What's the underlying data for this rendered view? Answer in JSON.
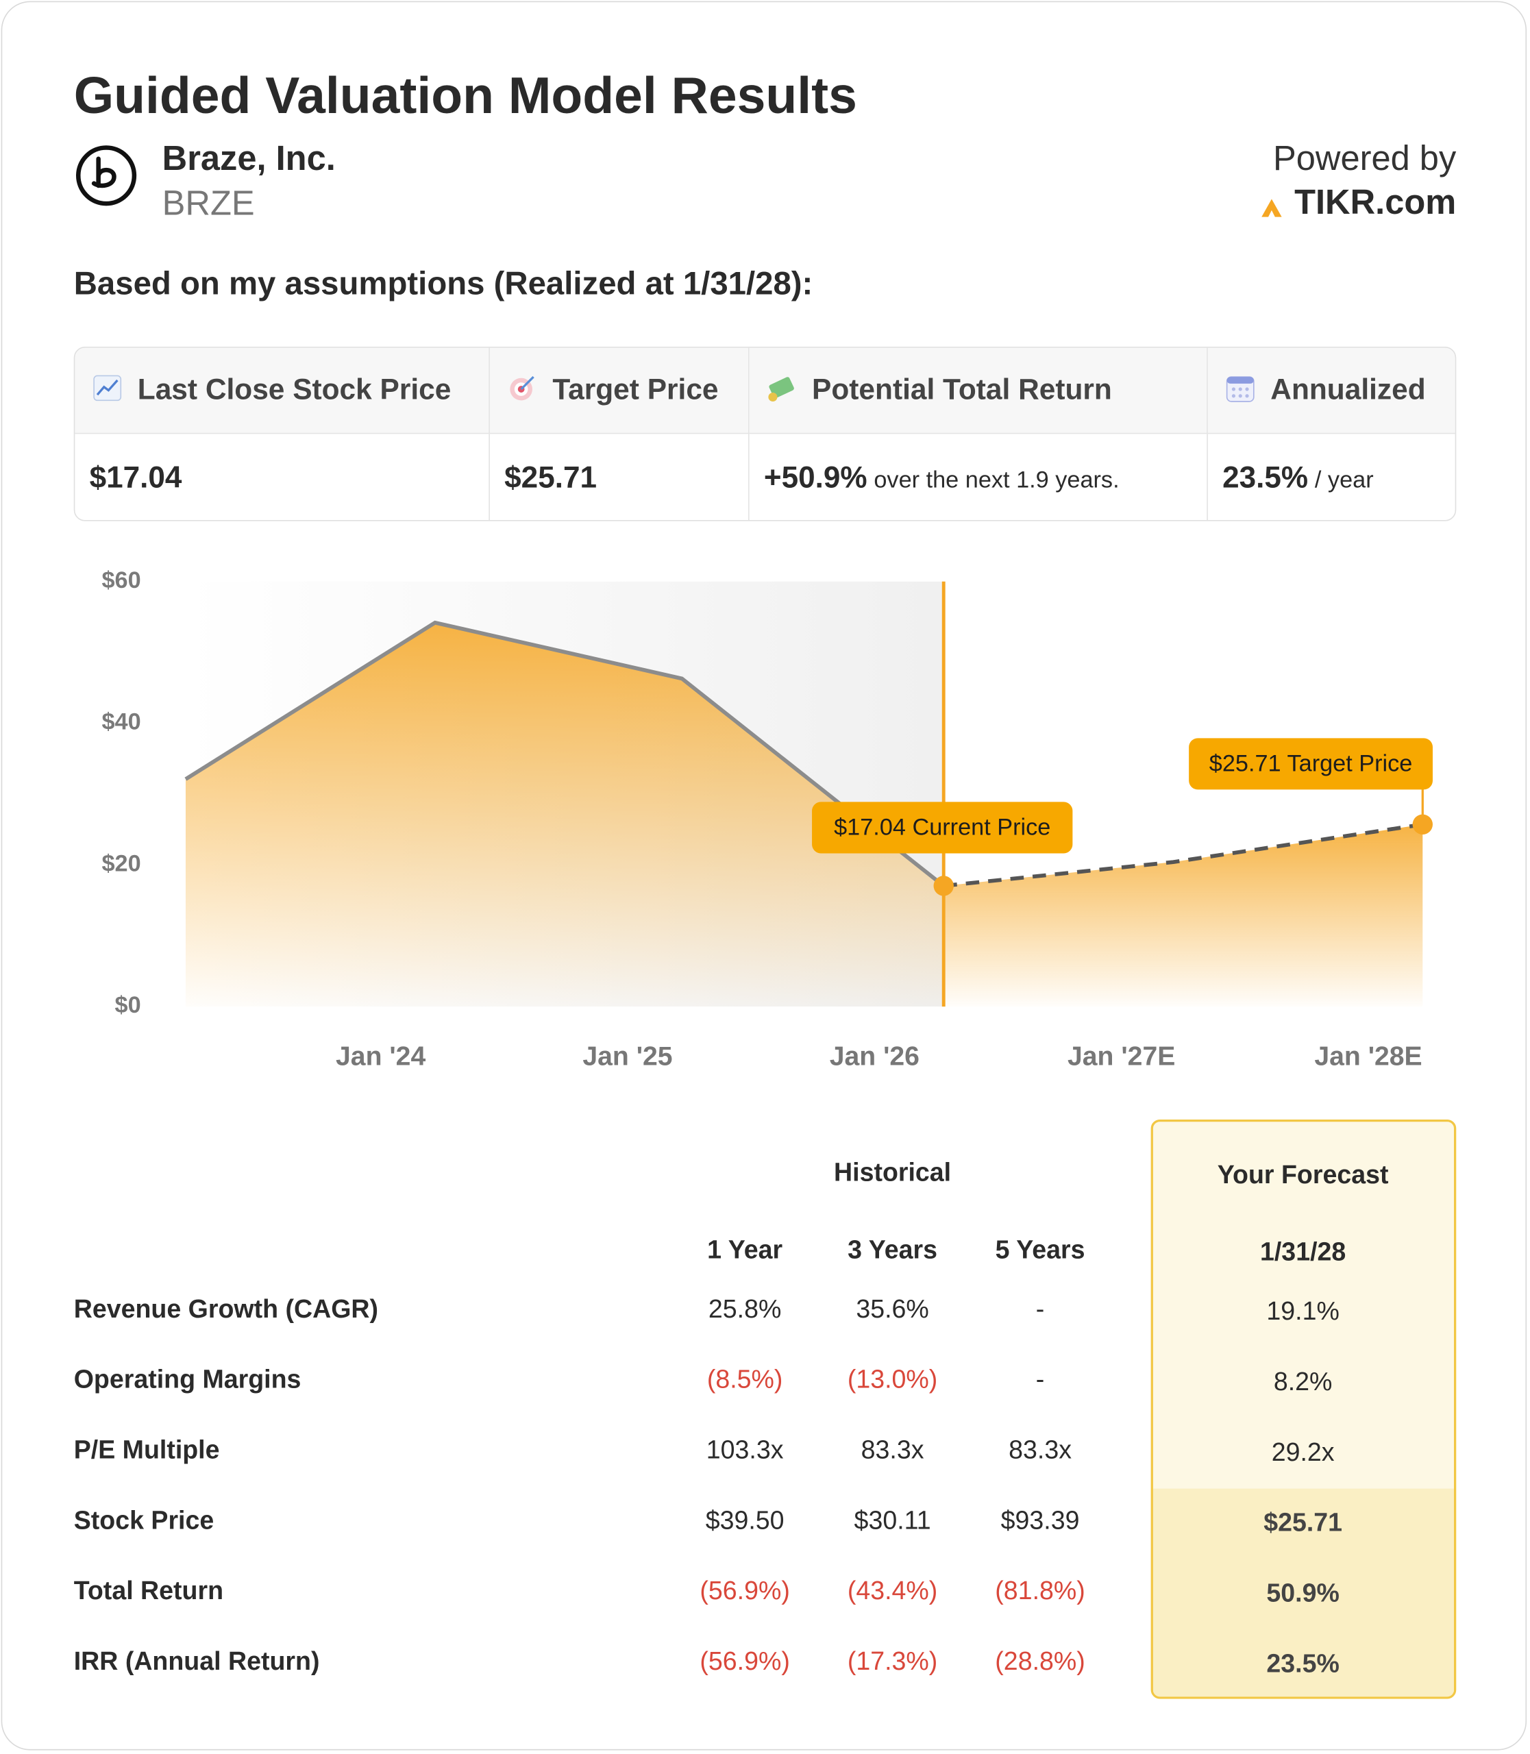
{
  "header": {
    "title": "Guided Valuation Model Results",
    "company": "Braze, Inc.",
    "ticker": "BRZE",
    "powered_by": "Powered by",
    "brand": "TIKR.com"
  },
  "assumptions": "Based on my assumptions (Realized at 1/31/28):",
  "summary": {
    "columns": [
      {
        "label": "Last Close Stock Price",
        "value": "$17.04"
      },
      {
        "label": "Target Price",
        "value": "$25.71"
      },
      {
        "label": "Potential Total Return",
        "value": "+50.9%",
        "note": "over the next 1.9 years."
      },
      {
        "label": "Annualized",
        "value": "23.5%",
        "note": "/ year"
      }
    ]
  },
  "chart_data": {
    "type": "line",
    "x": [
      2023.21,
      2024.22,
      2025.22,
      2026.28,
      2027.21,
      2028.22
    ],
    "series": [
      {
        "name": "Historical",
        "color": "#8c8c8c",
        "values": [
          32.1,
          54.2,
          46.3,
          17.04,
          null,
          null
        ]
      },
      {
        "name": "Forecast",
        "color": "#555555",
        "values": [
          null,
          null,
          null,
          17.04,
          20.4,
          25.71
        ]
      }
    ],
    "fill_color": "#f5a623",
    "xlim": [
      2023.21,
      2028.22
    ],
    "xticks": [
      {
        "value": 2024,
        "label": "Jan '24"
      },
      {
        "value": 2025,
        "label": "Jan '25"
      },
      {
        "value": 2026,
        "label": "Jan '26"
      },
      {
        "value": 2027,
        "label": "Jan '27E"
      },
      {
        "value": 2028,
        "label": "Jan '28E"
      }
    ],
    "ylim": [
      0,
      60
    ],
    "yticks": [
      {
        "value": 0,
        "label": "$0"
      },
      {
        "value": 20,
        "label": "$20"
      },
      {
        "value": 40,
        "label": "$40"
      },
      {
        "value": 60,
        "label": "$60"
      }
    ],
    "annotations": [
      {
        "text": "$17.04 Current Price"
      },
      {
        "text": "$25.71 Target Price"
      }
    ]
  },
  "table": {
    "historical_label": "Historical",
    "forecast_label": "Your Forecast",
    "periods": [
      "1 Year",
      "3 Years",
      "5 Years"
    ],
    "forecast_period": "1/31/28",
    "rows": [
      {
        "label": "Revenue Growth (CAGR)",
        "historical": [
          "25.8%",
          "35.6%",
          "-"
        ],
        "forecast": "19.1%"
      },
      {
        "label": "Operating Margins",
        "historical": [
          "(8.5%)",
          "(13.0%)",
          "-"
        ],
        "forecast": "8.2%"
      },
      {
        "label": "P/E Multiple",
        "historical": [
          "103.3x",
          "83.3x",
          "83.3x"
        ],
        "forecast": "29.2x"
      },
      {
        "label": "Stock Price",
        "historical": [
          "$39.50",
          "$30.11",
          "$93.39"
        ],
        "forecast": "$25.71"
      },
      {
        "label": "Total Return",
        "historical": [
          "(56.9%)",
          "(43.4%)",
          "(81.8%)"
        ],
        "forecast": "50.9%"
      },
      {
        "label": "IRR (Annual Return)",
        "historical": [
          "(56.9%)",
          "(17.3%)",
          "(28.8%)"
        ],
        "forecast": "23.5%"
      }
    ]
  }
}
